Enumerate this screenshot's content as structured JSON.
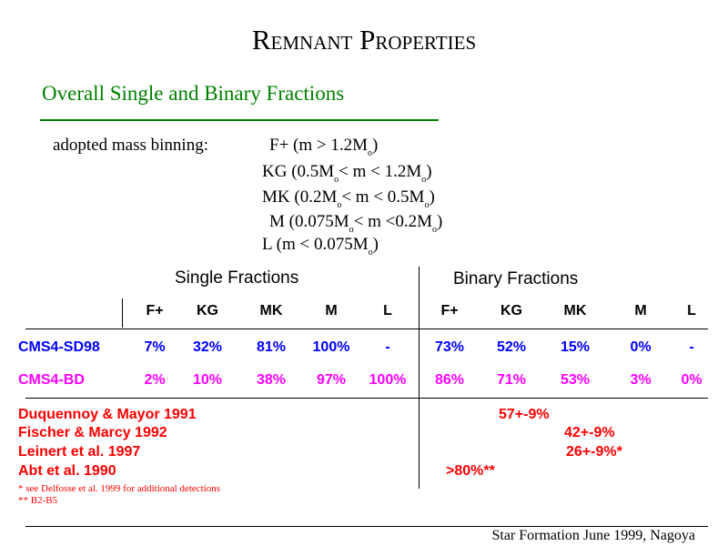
{
  "title": {
    "cap1": "R",
    "rest1": "EMNANT",
    "cap2": "P",
    "rest2": "ROPERTIES"
  },
  "subtitle": "Overall Single and Binary Fractions",
  "binning": {
    "label": "adopted mass binning:",
    "lines": [
      "F+ (m > 1.2M",
      "KG (0.5M",
      "MK (0.2M",
      "M (0.075M",
      "L (m < 0.075M"
    ],
    "line_tails": [
      ")",
      "< m < 1.2M",
      "< m < 0.5M",
      "< m <0.2M",
      ")"
    ],
    "line_ends": [
      "",
      ")",
      ")",
      ")",
      ""
    ],
    "sun": "o"
  },
  "table": {
    "single_header": "Single  Fractions",
    "binary_header": "Binary Fractions",
    "columns": [
      "F+",
      "KG",
      "MK",
      "M",
      "L",
      "F+",
      "KG",
      "MK",
      "M",
      "L"
    ],
    "rows": [
      {
        "label": "CMS4-SD98",
        "color": "#0000ff",
        "values": [
          "7%",
          "32%",
          "81%",
          "100%",
          "-",
          "73%",
          "52%",
          "15%",
          "0%",
          "-"
        ]
      },
      {
        "label": "CMS4-BD",
        "color": "#ff00ff",
        "values": [
          "2%",
          "10%",
          "38%",
          "97%",
          "100%",
          "86%",
          "71%",
          "53%",
          "3%",
          "0%"
        ]
      }
    ]
  },
  "references": [
    {
      "label": "Duquennoy & Mayor 1991",
      "value": "57+-9%"
    },
    {
      "label": "Fischer & Marcy 1992",
      "value": "42+-9%"
    },
    {
      "label": "Leinert et al. 1997",
      "value": "26+-9%*"
    },
    {
      "label": "Abt et al. 1990",
      "value": ">80%**"
    }
  ],
  "notes": [
    "* see Delfosse et al. 1999 for additional detections",
    "** B2-B5"
  ],
  "footer": "Star Formation June 1999, Nagoya"
}
